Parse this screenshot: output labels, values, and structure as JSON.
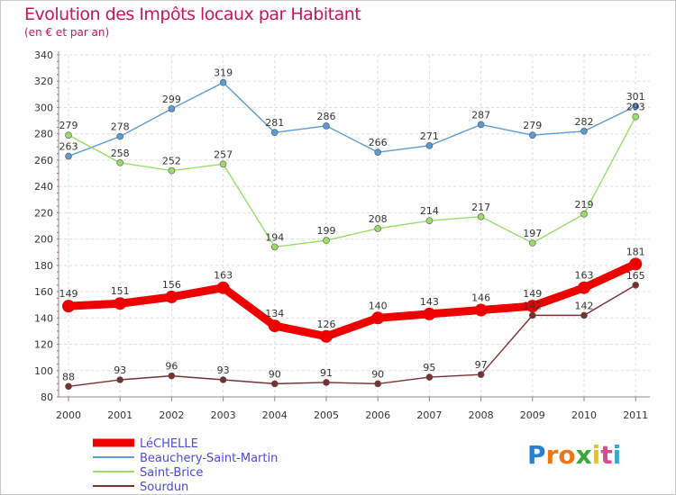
{
  "title": "Evolution des Impôts locaux par Habitant",
  "subtitle": "(en € et par an)",
  "logo": {
    "letters": [
      "P",
      "r",
      "o",
      "x",
      "i",
      "t",
      "i"
    ],
    "colors": [
      "#2a7fd4",
      "#e8791a",
      "#e8791a",
      "#3aa83a",
      "#e8c41a",
      "#d94a8c",
      "#3aa8d4"
    ]
  },
  "chart_data": {
    "type": "line",
    "x": [
      "2000",
      "2001",
      "2002",
      "2003",
      "2004",
      "2005",
      "2006",
      "2007",
      "2008",
      "2009",
      "2010",
      "2011"
    ],
    "ylim": [
      80,
      340
    ],
    "yticks": [
      80,
      100,
      120,
      140,
      160,
      180,
      200,
      220,
      240,
      260,
      280,
      300,
      320,
      340
    ],
    "grid": true,
    "legend_position": "bottom-left",
    "series": [
      {
        "name": "LéCHELLE",
        "color": "#ee0000",
        "values": [
          149,
          151,
          156,
          163,
          134,
          126,
          140,
          143,
          146,
          149,
          163,
          181
        ]
      },
      {
        "name": "Beauchery-Saint-Martin",
        "color": "#5b9bd5",
        "values": [
          263,
          278,
          299,
          319,
          281,
          286,
          266,
          271,
          287,
          279,
          282,
          301
        ]
      },
      {
        "name": "Saint-Brice",
        "color": "#99dd66",
        "values": [
          279,
          258,
          252,
          257,
          194,
          199,
          208,
          214,
          217,
          197,
          219,
          293
        ]
      },
      {
        "name": "Sourdun",
        "color": "#7a3030",
        "values": [
          88,
          93,
          96,
          93,
          90,
          91,
          90,
          95,
          97,
          142,
          142,
          165
        ]
      }
    ]
  }
}
